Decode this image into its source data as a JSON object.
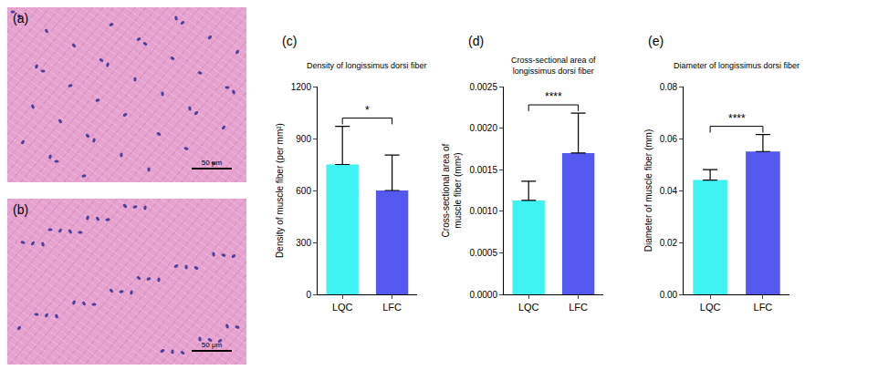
{
  "images": [
    {
      "label": "(a)",
      "scale_bar": "50 μm"
    },
    {
      "label": "(b)",
      "scale_bar": "50 μm"
    }
  ],
  "chart_data": [
    {
      "type": "bar",
      "panel": "(c)",
      "title": "Density of longissimus dorsi fiber",
      "y_label": "Density of muscle fiber (per mm²)",
      "categories": [
        "LQC",
        "LFC"
      ],
      "values": [
        750,
        600
      ],
      "errors": [
        220,
        205
      ],
      "colors": [
        "#3ff3f3",
        "#5558ee"
      ],
      "ylim": [
        0,
        1200
      ],
      "yticks": [
        0,
        300,
        600,
        900,
        1200
      ],
      "significance": "*",
      "grid": false
    },
    {
      "type": "bar",
      "panel": "(d)",
      "title": "Cross-sectional area of longissimus dorsi fiber",
      "y_label": "Cross-sectional area of muscle fiber (mm²)",
      "categories": [
        "LQC",
        "LFC"
      ],
      "values": [
        0.00113,
        0.0017
      ],
      "errors": [
        0.00023,
        0.00048
      ],
      "colors": [
        "#3ff3f3",
        "#5558ee"
      ],
      "ylim": [
        0,
        0.0025
      ],
      "yticks": [
        {
          "value": 0,
          "label": "0.0000"
        },
        {
          "value": 0.0005,
          "label": "0.0005"
        },
        {
          "value": 0.001,
          "label": "0.0010"
        },
        {
          "value": 0.0015,
          "label": "0.0015"
        },
        {
          "value": 0.002,
          "label": "0.0020"
        },
        {
          "value": 0.0025,
          "label": "0.0025"
        }
      ],
      "significance": "****",
      "grid": false
    },
    {
      "type": "bar",
      "panel": "(e)",
      "title": "Diameter of longissimus dorsi fiber",
      "y_label": "Diameter of muscle fiber (mm)",
      "categories": [
        "LQC",
        "LFC"
      ],
      "values": [
        0.044,
        0.055
      ],
      "errors": [
        0.004,
        0.0065
      ],
      "colors": [
        "#3ff3f3",
        "#5558ee"
      ],
      "ylim": [
        0,
        0.08
      ],
      "yticks": [
        {
          "value": 0,
          "label": "0.00"
        },
        {
          "value": 0.02,
          "label": "0.02"
        },
        {
          "value": 0.04,
          "label": "0.04"
        },
        {
          "value": 0.06,
          "label": "0.06"
        },
        {
          "value": 0.08,
          "label": "0.08"
        }
      ],
      "significance": "****",
      "grid": false
    }
  ]
}
